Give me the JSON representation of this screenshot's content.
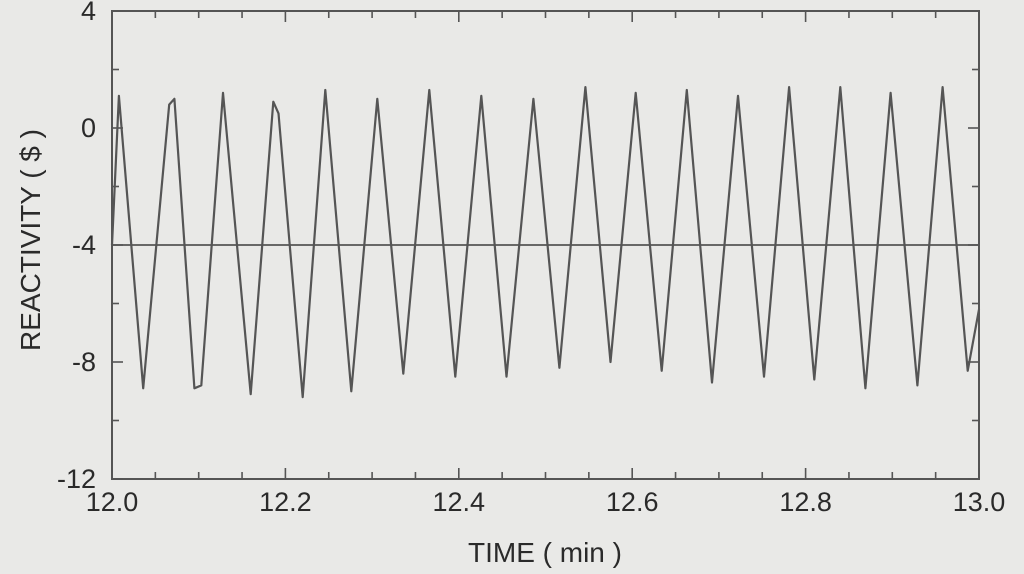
{
  "chart_data": {
    "type": "line",
    "title": "",
    "xlabel": "TIME ( min )",
    "ylabel": "REACTIVITY ( $ )",
    "xlim": [
      12.0,
      13.0
    ],
    "ylim": [
      -12,
      4
    ],
    "x_ticks": [
      12.0,
      12.2,
      12.4,
      12.6,
      12.8,
      13.0
    ],
    "x_tick_labels": [
      "12.0",
      "12.2",
      "12.4",
      "12.6",
      "12.8",
      "13.0"
    ],
    "y_ticks": [
      -12,
      -8,
      -4,
      0,
      4
    ],
    "y_tick_labels": [
      "-12",
      "-8",
      "-4",
      "0",
      "4"
    ],
    "grid": false,
    "line_color": "#555555",
    "reference_line": {
      "y": -4
    },
    "series": [
      {
        "x": [
          12.0,
          12.008,
          12.036,
          12.066,
          12.072,
          12.095,
          12.103,
          12.128,
          12.16,
          12.186,
          12.192,
          12.22,
          12.246,
          12.276,
          12.306,
          12.336,
          12.366,
          12.396,
          12.426,
          12.455,
          12.486,
          12.516,
          12.546,
          12.575,
          12.604,
          12.634,
          12.663,
          12.692,
          12.722,
          12.752,
          12.781,
          12.81,
          12.84,
          12.869,
          12.898,
          12.929,
          12.958,
          12.987,
          13.0
        ],
        "y": [
          -4.0,
          1.1,
          -8.9,
          0.8,
          1.0,
          -8.9,
          -8.8,
          1.2,
          -9.1,
          0.9,
          0.5,
          -9.2,
          1.3,
          -9.0,
          1.0,
          -8.4,
          1.3,
          -8.5,
          1.1,
          -8.5,
          1.0,
          -8.2,
          1.4,
          -8.0,
          1.2,
          -8.3,
          1.3,
          -8.7,
          1.1,
          -8.5,
          1.4,
          -8.6,
          1.4,
          -8.9,
          1.2,
          -8.8,
          1.4,
          -8.3,
          -6.2
        ]
      }
    ]
  }
}
